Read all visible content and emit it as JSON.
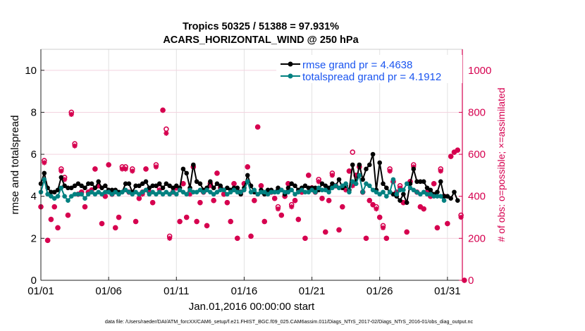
{
  "chart_data": {
    "type": "line",
    "title": [
      "Tropics 50325 / 51388 = 97.931%",
      "ACARS_HORIZONTAL_WIND @ 250 hPa"
    ],
    "xlabel": "Jan.01,2016 00:00:00 start",
    "ylabel": "rmse and totalspread",
    "y2label": "# of obs: o=possible; ×=assimilated",
    "footer": "data file: /Users/raeder/DAI/ATM_forcXX/CAM6_setup/f.e21.FHIST_BGC.f09_025.CAM6assim.011/Diags_NTrS_2017-02/Diags_NTrS_2016-01/obs_diag_output.nc",
    "xlim_days": [
      0,
      31.1
    ],
    "ylim": [
      0,
      11
    ],
    "y2lim": [
      0,
      1100
    ],
    "xticks": [
      {
        "day": 0,
        "label": "01/01"
      },
      {
        "day": 5,
        "label": "01/06"
      },
      {
        "day": 10,
        "label": "01/11"
      },
      {
        "day": 15,
        "label": "01/16"
      },
      {
        "day": 20,
        "label": "01/21"
      },
      {
        "day": 25,
        "label": "01/26"
      },
      {
        "day": 30,
        "label": "01/31"
      }
    ],
    "yticks": [
      "0",
      "2",
      "4",
      "6",
      "8",
      "10"
    ],
    "y2ticks": [
      "0",
      "200",
      "400",
      "600",
      "800",
      "1000"
    ],
    "time_step_days": 0.25,
    "legend_position": "top-right",
    "colors": {
      "rmse": "#000000",
      "spread": "#008080",
      "obs": "#d6004f",
      "legend_text": "#1a55f0"
    },
    "series": [
      {
        "name": "rmse grand pr = 4.4638",
        "key": "rmse",
        "values": [
          4.6,
          5.1,
          4.4,
          4.2,
          4.2,
          4.3,
          4.9,
          4.5,
          4.4,
          4.4,
          4.5,
          4.6,
          4.5,
          4.4,
          4.6,
          4.6,
          4.4,
          4.7,
          4.4,
          4.5,
          4.3,
          4.3,
          4.3,
          4.2,
          4.2,
          4.6,
          4.6,
          4.2,
          4.5,
          4.5,
          4.6,
          4.7,
          4.4,
          4.5,
          4.5,
          4.6,
          4.4,
          4.6,
          4.5,
          4.4,
          4.5,
          4.4,
          5.3,
          5.1,
          4.4,
          5.5,
          4.7,
          4.6,
          4.3,
          4.4,
          4.7,
          4.4,
          4.6,
          4.5,
          4.3,
          4.4,
          4.3,
          4.4,
          4.4,
          4.1,
          4.4,
          5.0,
          4.5,
          4.2,
          4.1,
          4.3,
          4.1,
          4.3,
          4.3,
          4.2,
          4.4,
          4.3,
          4.1,
          4.4,
          4.6,
          4.5,
          4.3,
          4.4,
          4.5,
          4.4,
          4.4,
          4.4,
          4.3,
          4.6,
          4.5,
          4.4,
          4.6,
          4.5,
          4.8,
          4.4,
          4.5,
          4.3,
          5.5,
          4.6,
          5.5,
          4.8,
          5.3,
          5.5,
          6.0,
          4.3,
          5.6,
          4.6,
          4.4,
          4.2,
          4.1,
          4.0,
          3.8,
          4.1,
          3.7,
          4.6,
          5.3,
          4.7,
          4.7,
          4.7,
          4.4,
          4.3,
          4.1,
          4.2,
          4.7,
          4.0,
          4.0,
          3.9,
          4.2,
          3.8
        ]
      },
      {
        "name": "totalspread grand pr = 4.1912",
        "key": "spread",
        "values": [
          4.2,
          4.8,
          4.1,
          4.0,
          3.9,
          4.0,
          4.4,
          4.0,
          3.8,
          4.0,
          4.1,
          4.1,
          4.1,
          3.9,
          4.1,
          4.2,
          4.1,
          4.2,
          4.1,
          4.2,
          4.2,
          4.1,
          4.2,
          4.1,
          4.2,
          4.3,
          4.2,
          4.1,
          4.2,
          4.1,
          4.2,
          4.3,
          4.1,
          4.2,
          4.1,
          4.2,
          4.1,
          4.2,
          4.1,
          4.2,
          4.1,
          4.3,
          4.2,
          4.1,
          4.3,
          4.2,
          4.2,
          4.3,
          4.2,
          4.3,
          4.2,
          4.1,
          4.2,
          4.3,
          4.3,
          4.1,
          4.2,
          4.3,
          4.2,
          4.2,
          4.3,
          4.7,
          4.2,
          4.3,
          4.1,
          4.2,
          4.2,
          4.1,
          4.2,
          4.2,
          4.2,
          4.3,
          4.2,
          4.2,
          4.3,
          4.1,
          4.2,
          4.3,
          4.2,
          4.2,
          4.3,
          4.2,
          4.4,
          4.3,
          4.3,
          4.2,
          4.4,
          4.5,
          4.4,
          4.5,
          4.6,
          4.2,
          4.7,
          4.6,
          5.0,
          4.2,
          4.6,
          4.5,
          4.3,
          4.2,
          4.1,
          4.2,
          4.0,
          4.2,
          4.8,
          4.1,
          4.3,
          4.3,
          4.6,
          4.4,
          4.3,
          4.2,
          4.1,
          4.2,
          4.1,
          4.1,
          4.0,
          4.0,
          4.0,
          3.8
        ]
      },
      {
        "name": "assimilated",
        "key": "obs_assim",
        "axis": "right",
        "values": [
          350,
          560,
          190,
          290,
          350,
          250,
          520,
          480,
          310,
          790,
          640,
          410,
          420,
          350,
          420,
          430,
          530,
          450,
          270,
          400,
          550,
          410,
          250,
          300,
          530,
          530,
          420,
          520,
          280,
          390,
          410,
          530,
          420,
          370,
          540,
          430,
          810,
          700,
          200,
          420,
          440,
          280,
          460,
          300,
          410,
          540,
          280,
          370,
          420,
          260,
          450,
          380,
          510,
          440,
          410,
          370,
          280,
          460,
          200,
          420,
          460,
          540,
          210,
          380,
          730,
          450,
          280,
          420,
          420,
          390,
          340,
          310,
          400,
          460,
          350,
          380,
          290,
          420,
          200,
          500,
          440,
          420,
          470,
          390,
          230,
          380,
          500,
          450,
          240,
          350,
          430,
          520,
          450,
          500,
          540,
          420,
          200,
          380,
          360,
          340,
          300,
          250,
          200,
          520,
          470,
          420,
          440,
          370,
          230,
          470,
          540,
          420,
          350,
          340,
          420,
          400,
          460,
          250,
          520,
          400,
          270,
          590,
          610,
          620,
          300,
          0
        ]
      },
      {
        "name": "possible",
        "key": "obs_poss",
        "axis": "right",
        "values": [
          350,
          570,
          190,
          290,
          350,
          250,
          530,
          490,
          310,
          800,
          650,
          410,
          420,
          350,
          420,
          430,
          530,
          450,
          270,
          400,
          550,
          410,
          250,
          300,
          540,
          540,
          420,
          530,
          280,
          390,
          420,
          530,
          420,
          370,
          550,
          440,
          810,
          720,
          210,
          420,
          440,
          280,
          460,
          300,
          420,
          540,
          280,
          370,
          420,
          260,
          460,
          380,
          510,
          440,
          410,
          370,
          280,
          460,
          200,
          420,
          460,
          540,
          210,
          380,
          730,
          450,
          280,
          420,
          420,
          390,
          350,
          310,
          400,
          460,
          360,
          380,
          290,
          420,
          200,
          500,
          440,
          420,
          480,
          390,
          230,
          380,
          510,
          450,
          240,
          350,
          440,
          520,
          610,
          500,
          540,
          420,
          200,
          380,
          360,
          350,
          300,
          260,
          200,
          530,
          470,
          420,
          450,
          370,
          230,
          470,
          550,
          420,
          350,
          340,
          420,
          400,
          460,
          250,
          530,
          400,
          270,
          590,
          610,
          620,
          310,
          0
        ]
      }
    ]
  }
}
